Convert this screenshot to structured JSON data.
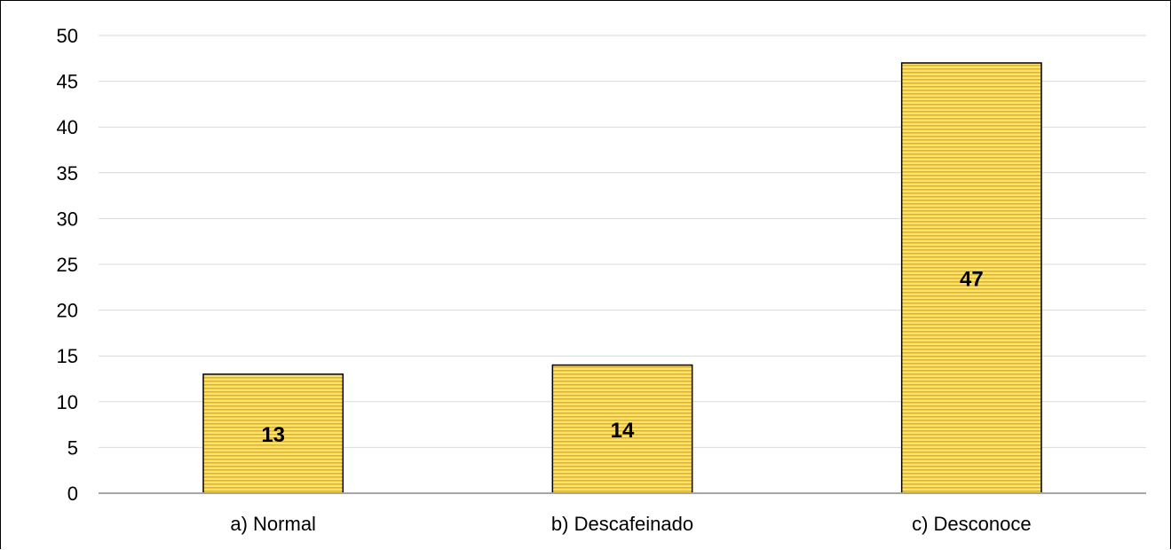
{
  "chart_data": {
    "type": "bar",
    "categories": [
      "a) Normal",
      "b) Descafeinado",
      "c) Desconoce"
    ],
    "values": [
      13,
      14,
      47
    ],
    "data_labels": [
      "13",
      "14",
      "47"
    ],
    "title": "",
    "xlabel": "",
    "ylabel": "",
    "ylim": [
      0,
      50
    ],
    "yticks": [
      "0",
      "5",
      "10",
      "15",
      "20",
      "25",
      "30",
      "35",
      "40",
      "45",
      "50"
    ],
    "grid": true,
    "legend": "none",
    "colors": {
      "bar_fill": "#fde27a",
      "bar_stripe": "#e8b400",
      "bar_stroke": "#000000",
      "grid": "#d9d9d9",
      "axis": "#a6a6a6"
    }
  }
}
